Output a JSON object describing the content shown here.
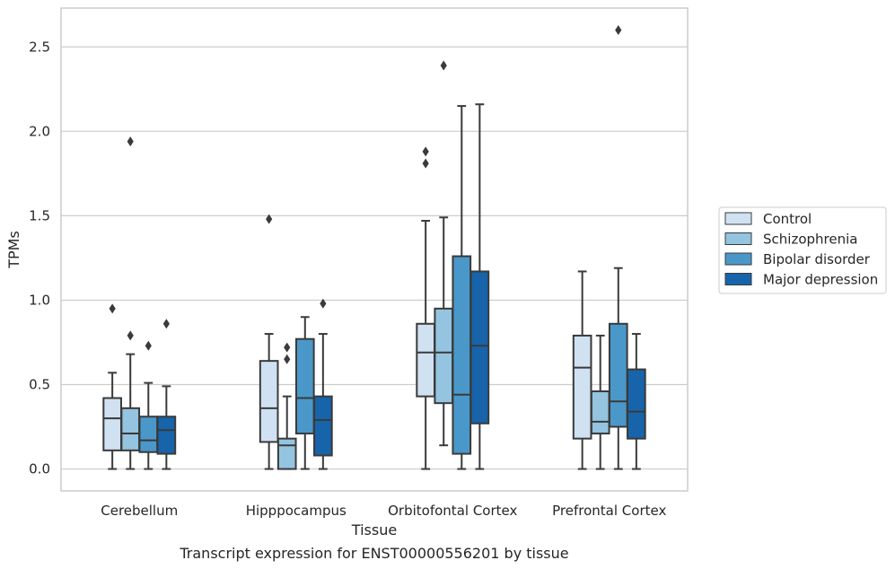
{
  "caption": "Transcript expression for ENST00000556201 by tissue",
  "colors": {
    "Control": "#d0e1f2",
    "Schizophrenia": "#94c4df",
    "Bipolar disorder": "#4a98c9",
    "Major depression": "#1764ab",
    "grid": "#cccccc",
    "frame": "#cccccc",
    "line": "#3a3a3a"
  },
  "chart_data": {
    "type": "box",
    "xlabel": "Tissue",
    "ylabel": "TPMs",
    "ylim": [
      -0.13,
      2.73
    ],
    "yticks": [
      "0.0",
      "0.5",
      "1.0",
      "1.5",
      "2.0",
      "2.5"
    ],
    "categories": [
      "Cerebellum",
      "Hipppocampus",
      "Orbitofontal Cortex",
      "Prefrontal Cortex"
    ],
    "grid": true,
    "legend_position": "right",
    "series": [
      {
        "name": "Control",
        "boxes": [
          {
            "min": 0.0,
            "q1": 0.11,
            "median": 0.3,
            "q3": 0.42,
            "max": 0.57,
            "outliers": [
              0.95
            ]
          },
          {
            "min": 0.0,
            "q1": 0.16,
            "median": 0.36,
            "q3": 0.64,
            "max": 0.8,
            "outliers": [
              1.48
            ]
          },
          {
            "min": 0.0,
            "q1": 0.43,
            "median": 0.69,
            "q3": 0.86,
            "max": 1.47,
            "outliers": [
              1.81,
              1.88
            ]
          },
          {
            "min": 0.0,
            "q1": 0.18,
            "median": 0.6,
            "q3": 0.79,
            "max": 1.17,
            "outliers": []
          }
        ]
      },
      {
        "name": "Schizophrenia",
        "boxes": [
          {
            "min": 0.0,
            "q1": 0.11,
            "median": 0.21,
            "q3": 0.36,
            "max": 0.68,
            "outliers": [
              0.79,
              1.94
            ]
          },
          {
            "min": 0.0,
            "q1": 0.0,
            "median": 0.14,
            "q3": 0.18,
            "max": 0.43,
            "outliers": [
              0.65,
              0.72
            ]
          },
          {
            "min": 0.14,
            "q1": 0.39,
            "median": 0.69,
            "q3": 0.95,
            "max": 1.49,
            "outliers": [
              2.39
            ]
          },
          {
            "min": 0.0,
            "q1": 0.21,
            "median": 0.28,
            "q3": 0.46,
            "max": 0.79,
            "outliers": []
          }
        ]
      },
      {
        "name": "Bipolar disorder",
        "boxes": [
          {
            "min": 0.0,
            "q1": 0.1,
            "median": 0.17,
            "q3": 0.31,
            "max": 0.51,
            "outliers": [
              0.73
            ]
          },
          {
            "min": 0.0,
            "q1": 0.21,
            "median": 0.42,
            "q3": 0.77,
            "max": 0.9,
            "outliers": []
          },
          {
            "min": 0.0,
            "q1": 0.09,
            "median": 0.44,
            "q3": 1.26,
            "max": 2.15,
            "outliers": []
          },
          {
            "min": 0.0,
            "q1": 0.25,
            "median": 0.4,
            "q3": 0.86,
            "max": 1.19,
            "outliers": [
              2.6
            ]
          }
        ]
      },
      {
        "name": "Major depression",
        "boxes": [
          {
            "min": 0.0,
            "q1": 0.09,
            "median": 0.23,
            "q3": 0.31,
            "max": 0.49,
            "outliers": [
              0.86
            ]
          },
          {
            "min": 0.0,
            "q1": 0.08,
            "median": 0.29,
            "q3": 0.43,
            "max": 0.8,
            "outliers": [
              0.98
            ]
          },
          {
            "min": 0.0,
            "q1": 0.27,
            "median": 0.73,
            "q3": 1.17,
            "max": 2.16,
            "outliers": []
          },
          {
            "min": 0.0,
            "q1": 0.18,
            "median": 0.34,
            "q3": 0.59,
            "max": 0.8,
            "outliers": []
          }
        ]
      }
    ]
  }
}
